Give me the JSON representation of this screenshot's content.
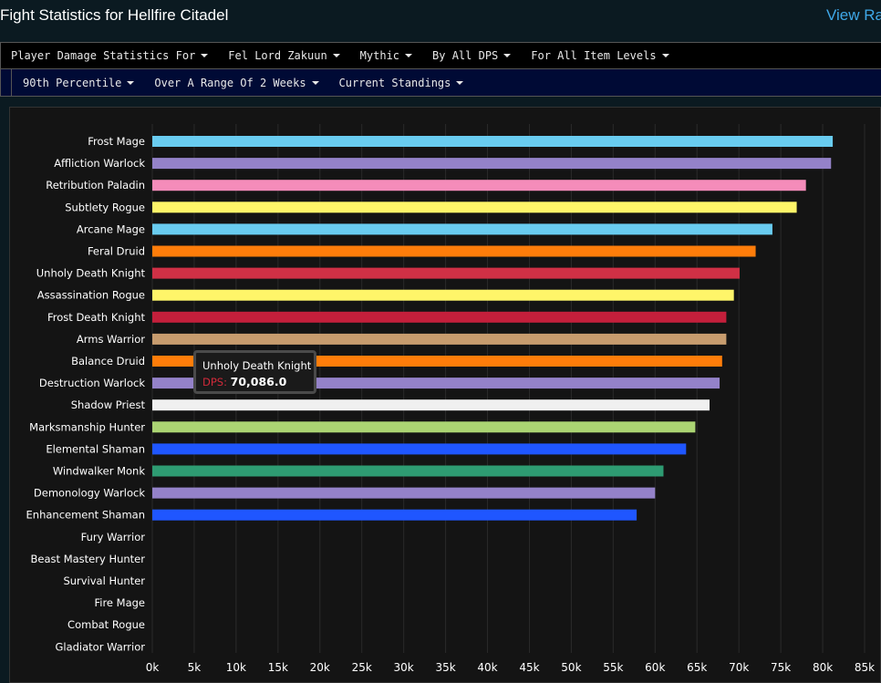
{
  "header": {
    "title": "Fight Statistics for Hellfire Citadel",
    "view_link": "View Ra"
  },
  "filters_row1": [
    {
      "label": "Player Damage Statistics For"
    },
    {
      "label": "Fel Lord Zakuun"
    },
    {
      "label": "Mythic"
    },
    {
      "label": "By All DPS"
    },
    {
      "label": "For All Item Levels"
    }
  ],
  "filters_row2": [
    {
      "label": "90th Percentile"
    },
    {
      "label": "Over A Range Of 2 Weeks"
    },
    {
      "label": "Current Standings"
    }
  ],
  "tooltip": {
    "name": "Unholy Death Knight",
    "key": "DPS",
    "value": "70,086.0"
  },
  "chart_data": {
    "type": "bar",
    "orientation": "horizontal",
    "xlabel": "DPS",
    "xlim": [
      0,
      85000
    ],
    "ticks": [
      "0k",
      "5k",
      "10k",
      "15k",
      "20k",
      "25k",
      "30k",
      "35k",
      "40k",
      "45k",
      "50k",
      "55k",
      "60k",
      "65k",
      "70k",
      "75k",
      "80k",
      "85k"
    ],
    "grid": true,
    "categories": [
      "Frost Mage",
      "Affliction Warlock",
      "Retribution Paladin",
      "Subtlety Rogue",
      "Arcane Mage",
      "Feral Druid",
      "Unholy Death Knight",
      "Assassination Rogue",
      "Frost Death Knight",
      "Arms Warrior",
      "Balance Druid",
      "Destruction Warlock",
      "Shadow Priest",
      "Marksmanship Hunter",
      "Elemental Shaman",
      "Windwalker Monk",
      "Demonology Warlock",
      "Enhancement Shaman",
      "Fury Warrior",
      "Beast Mastery Hunter",
      "Survival Hunter",
      "Fire Mage",
      "Combat Rogue",
      "Gladiator Warrior"
    ],
    "values": [
      81200,
      81000,
      78000,
      76900,
      74000,
      72000,
      70086,
      69400,
      68500,
      68500,
      68000,
      67700,
      66500,
      64800,
      63700,
      61000,
      60000,
      57800,
      null,
      null,
      null,
      null,
      null,
      null
    ],
    "colors": [
      "#69ccf0",
      "#9482c9",
      "#f58cba",
      "#fff569",
      "#69ccf0",
      "#ff7d0a",
      "#d03045",
      "#fff569",
      "#c41f3b",
      "#c79c6e",
      "#ff7d0a",
      "#9482c9",
      "#f0f0f0",
      "#abd473",
      "#1f56ff",
      "#2e9b72",
      "#9482c9",
      "#1f56ff",
      null,
      null,
      null,
      null,
      null,
      null
    ]
  }
}
